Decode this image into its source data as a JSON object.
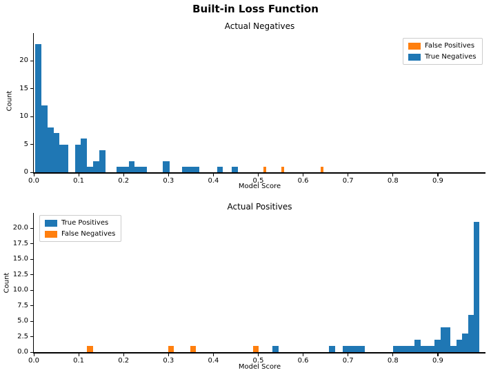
{
  "figure": {
    "title": "Built-in Loss Function"
  },
  "colors": {
    "blue": "#1f77b4",
    "orange": "#ff7f0e",
    "axis": "#000000",
    "legend_border": "#cccccc",
    "background": "#ffffff"
  },
  "chart_data": [
    {
      "type": "bar",
      "title": "Actual Negatives",
      "xlabel": "Model Score",
      "ylabel": "Count",
      "grid": false,
      "xlim": [
        0,
        1.01
      ],
      "ylim": [
        0,
        25
      ],
      "legend_position": "upper right",
      "x_ticks": [
        {
          "label": "0.0",
          "value": 0.0
        },
        {
          "label": "0.1",
          "value": 0.1
        },
        {
          "label": "0.2",
          "value": 0.2
        },
        {
          "label": "0.3",
          "value": 0.3
        },
        {
          "label": "0.4",
          "value": 0.4
        },
        {
          "label": "0.5",
          "value": 0.5
        },
        {
          "label": "0.6",
          "value": 0.6
        },
        {
          "label": "0.7",
          "value": 0.7
        },
        {
          "label": "0.8",
          "value": 0.8
        },
        {
          "label": "0.9",
          "value": 0.9
        }
      ],
      "y_ticks": [
        {
          "label": "0",
          "value": 0
        },
        {
          "label": "5",
          "value": 5
        },
        {
          "label": "10",
          "value": 10
        },
        {
          "label": "15",
          "value": 15
        },
        {
          "label": "20",
          "value": 20
        }
      ],
      "legend": [
        {
          "label": "False Positives",
          "color": "#ff7f0e"
        },
        {
          "label": "True Negatives",
          "color": "#1f77b4"
        }
      ],
      "series": [
        {
          "name": "True Negatives",
          "color": "#1f77b4",
          "bars": [
            {
              "from": 0.003,
              "to": 0.017,
              "count": 23
            },
            {
              "from": 0.017,
              "to": 0.03,
              "count": 12
            },
            {
              "from": 0.03,
              "to": 0.044,
              "count": 8
            },
            {
              "from": 0.044,
              "to": 0.057,
              "count": 7
            },
            {
              "from": 0.057,
              "to": 0.077,
              "count": 5
            },
            {
              "from": 0.092,
              "to": 0.105,
              "count": 5
            },
            {
              "from": 0.105,
              "to": 0.119,
              "count": 6
            },
            {
              "from": 0.119,
              "to": 0.132,
              "count": 1
            },
            {
              "from": 0.132,
              "to": 0.146,
              "count": 2
            },
            {
              "from": 0.146,
              "to": 0.16,
              "count": 4
            },
            {
              "from": 0.185,
              "to": 0.212,
              "count": 1
            },
            {
              "from": 0.212,
              "to": 0.225,
              "count": 2
            },
            {
              "from": 0.225,
              "to": 0.252,
              "count": 1
            },
            {
              "from": 0.288,
              "to": 0.302,
              "count": 2
            },
            {
              "from": 0.33,
              "to": 0.368,
              "count": 1
            },
            {
              "from": 0.408,
              "to": 0.421,
              "count": 1
            },
            {
              "from": 0.441,
              "to": 0.455,
              "count": 1
            }
          ]
        },
        {
          "name": "False Positives",
          "color": "#ff7f0e",
          "bars": [
            {
              "from": 0.512,
              "to": 0.518,
              "count": 1
            },
            {
              "from": 0.551,
              "to": 0.557,
              "count": 1
            },
            {
              "from": 0.639,
              "to": 0.645,
              "count": 1
            }
          ]
        }
      ]
    },
    {
      "type": "bar",
      "title": "Actual Positives",
      "xlabel": "Model Score",
      "ylabel": "Count",
      "grid": false,
      "xlim": [
        0,
        1.01
      ],
      "ylim": [
        0,
        22.5
      ],
      "legend_position": "upper left",
      "x_ticks": [
        {
          "label": "0.0",
          "value": 0.0
        },
        {
          "label": "0.1",
          "value": 0.1
        },
        {
          "label": "0.2",
          "value": 0.2
        },
        {
          "label": "0.3",
          "value": 0.3
        },
        {
          "label": "0.4",
          "value": 0.4
        },
        {
          "label": "0.5",
          "value": 0.5
        },
        {
          "label": "0.6",
          "value": 0.6
        },
        {
          "label": "0.7",
          "value": 0.7
        },
        {
          "label": "0.8",
          "value": 0.8
        },
        {
          "label": "0.9",
          "value": 0.9
        }
      ],
      "y_ticks": [
        {
          "label": "0.0",
          "value": 0
        },
        {
          "label": "2.5",
          "value": 2.5
        },
        {
          "label": "5.0",
          "value": 5
        },
        {
          "label": "7.5",
          "value": 7.5
        },
        {
          "label": "10.0",
          "value": 10
        },
        {
          "label": "12.5",
          "value": 12.5
        },
        {
          "label": "15.0",
          "value": 15
        },
        {
          "label": "17.5",
          "value": 17.5
        },
        {
          "label": "20.0",
          "value": 20
        }
      ],
      "legend": [
        {
          "label": "True Positives",
          "color": "#1f77b4"
        },
        {
          "label": "False Negatives",
          "color": "#ff7f0e"
        }
      ],
      "series": [
        {
          "name": "True Positives",
          "color": "#1f77b4",
          "bars": [
            {
              "from": 0.532,
              "to": 0.546,
              "count": 1
            },
            {
              "from": 0.657,
              "to": 0.671,
              "count": 1
            },
            {
              "from": 0.688,
              "to": 0.737,
              "count": 1
            },
            {
              "from": 0.8,
              "to": 0.848,
              "count": 1
            },
            {
              "from": 0.848,
              "to": 0.862,
              "count": 2
            },
            {
              "from": 0.862,
              "to": 0.893,
              "count": 1
            },
            {
              "from": 0.893,
              "to": 0.906,
              "count": 2
            },
            {
              "from": 0.906,
              "to": 0.928,
              "count": 4
            },
            {
              "from": 0.928,
              "to": 0.941,
              "count": 1
            },
            {
              "from": 0.941,
              "to": 0.954,
              "count": 2
            },
            {
              "from": 0.954,
              "to": 0.967,
              "count": 3
            },
            {
              "from": 0.967,
              "to": 0.98,
              "count": 6
            },
            {
              "from": 0.98,
              "to": 0.993,
              "count": 21
            }
          ]
        },
        {
          "name": "False Negatives",
          "color": "#ff7f0e",
          "bars": [
            {
              "from": 0.119,
              "to": 0.132,
              "count": 1
            },
            {
              "from": 0.299,
              "to": 0.312,
              "count": 1
            },
            {
              "from": 0.348,
              "to": 0.361,
              "count": 1
            },
            {
              "from": 0.488,
              "to": 0.501,
              "count": 1
            }
          ]
        }
      ]
    }
  ]
}
